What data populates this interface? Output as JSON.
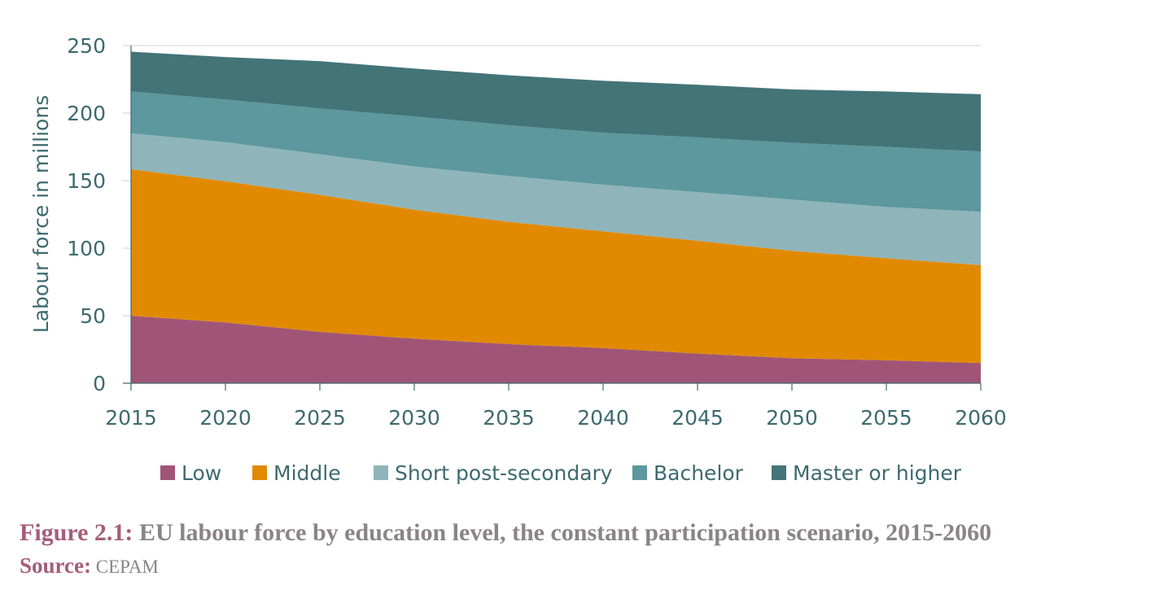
{
  "chart_data": {
    "type": "area",
    "stacked": true,
    "title": "",
    "xlabel": "",
    "ylabel": "Labour force in millions",
    "ylim": [
      0,
      250
    ],
    "yticks": [
      0,
      50,
      100,
      150,
      200,
      250
    ],
    "x": [
      "2015",
      "2020",
      "2025",
      "2030",
      "2035",
      "2040",
      "2045",
      "2050",
      "2055",
      "2060"
    ],
    "grid": "horizontal",
    "legend_position": "bottom",
    "series": [
      {
        "name": "Low",
        "color": "#a05577",
        "values": [
          50,
          45,
          38,
          33,
          29,
          26,
          22,
          18.5,
          17,
          15
        ]
      },
      {
        "name": "Middle",
        "color": "#e18a00",
        "values": [
          108.5,
          104.5,
          101.5,
          95.5,
          90.5,
          86.5,
          83.5,
          79.5,
          75.5,
          72.5
        ]
      },
      {
        "name": "Short post-secondary",
        "color": "#8fb5ba",
        "values": [
          26.5,
          29,
          30,
          32,
          34,
          34.5,
          36,
          38,
          38,
          39.5
        ]
      },
      {
        "name": "Bachelor",
        "color": "#5c989e",
        "values": [
          31,
          31.5,
          34,
          37,
          37.5,
          38.5,
          40.5,
          42,
          44.5,
          44.5
        ]
      },
      {
        "name": "Master or higher",
        "color": "#437478",
        "values": [
          29.5,
          31.5,
          35,
          35.5,
          37,
          38.5,
          39,
          39.5,
          41,
          42.5
        ]
      }
    ]
  },
  "caption": {
    "prefix": "Figure 2.1:",
    "text": "EU labour force by education level, the constant participation scenario, 2015-2060"
  },
  "source": {
    "prefix": "Source:",
    "text": "CEPAM"
  }
}
